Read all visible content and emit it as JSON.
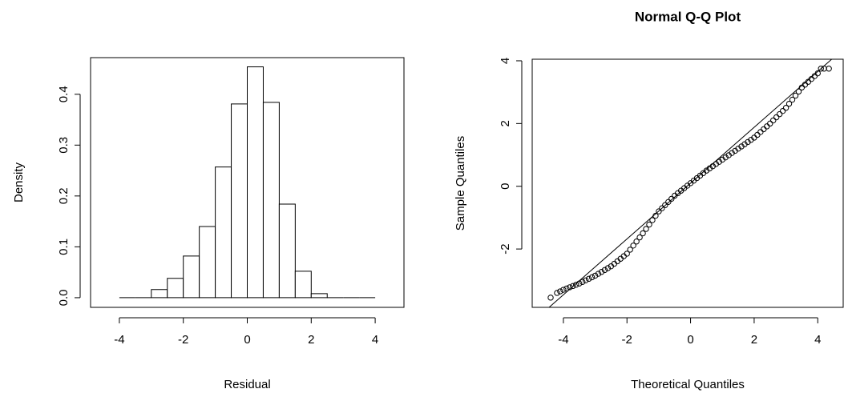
{
  "chart_data": [
    {
      "type": "histogram",
      "xlabel": "Residual",
      "ylabel": "Density",
      "bins": [
        -4,
        -3.5,
        -3,
        -2.5,
        -2,
        -1.5,
        -1,
        -0.5,
        0,
        0.5,
        1,
        1.5,
        2,
        2.5,
        3,
        3.5,
        4
      ],
      "values": [
        0,
        0,
        0.016,
        0.038,
        0.082,
        0.14,
        0.257,
        0.381,
        0.454,
        0.384,
        0.184,
        0.052,
        0.008,
        0,
        0,
        0
      ],
      "color": "#ffffff",
      "xlim": [
        -4.9,
        4.9
      ],
      "xticks": [
        -4,
        -2,
        0,
        2,
        4
      ],
      "ylim": [
        -0.019,
        0.472
      ],
      "yticks": [
        {
          "value": 0,
          "label": "0.0"
        },
        0.1,
        0.2,
        0.3,
        0.4
      ],
      "grid": false
    },
    {
      "type": "scatter",
      "title": "Normal Q-Q Plot",
      "xlabel": "Theoretical Quantiles",
      "ylabel": "Sample Quantiles",
      "x": [
        -4.4,
        -4.2,
        -4.1,
        -4.0,
        -3.9,
        -3.8,
        -3.7,
        -3.6,
        -3.5,
        -3.4,
        -3.3,
        -3.2,
        -3.1,
        -3.0,
        -2.9,
        -2.8,
        -2.7,
        -2.6,
        -2.5,
        -2.4,
        -2.3,
        -2.2,
        -2.1,
        -2.0,
        -1.9,
        -1.8,
        -1.7,
        -1.6,
        -1.5,
        -1.4,
        -1.3,
        -1.2,
        -1.1,
        -1.0,
        -0.9,
        -0.8,
        -0.7,
        -0.6,
        -0.5,
        -0.4,
        -0.3,
        -0.2,
        -0.1,
        0,
        0.1,
        0.2,
        0.3,
        0.4,
        0.5,
        0.6,
        0.7,
        0.8,
        0.9,
        1.0,
        1.1,
        1.2,
        1.3,
        1.4,
        1.5,
        1.6,
        1.7,
        1.8,
        1.9,
        2.0,
        2.1,
        2.2,
        2.3,
        2.4,
        2.5,
        2.6,
        2.7,
        2.8,
        2.9,
        3.0,
        3.1,
        3.2,
        3.3,
        3.4,
        3.5,
        3.6,
        3.7,
        3.8,
        3.9,
        4.0,
        4.1,
        4.2,
        4.35
      ],
      "y": [
        -3.55,
        -3.4,
        -3.35,
        -3.3,
        -3.26,
        -3.22,
        -3.18,
        -3.14,
        -3.1,
        -3.05,
        -3.0,
        -2.95,
        -2.9,
        -2.85,
        -2.79,
        -2.73,
        -2.67,
        -2.61,
        -2.55,
        -2.47,
        -2.39,
        -2.31,
        -2.23,
        -2.15,
        -2.02,
        -1.89,
        -1.76,
        -1.63,
        -1.5,
        -1.36,
        -1.22,
        -1.08,
        -0.94,
        -0.8,
        -0.7,
        -0.6,
        -0.5,
        -0.4,
        -0.3,
        -0.22,
        -0.14,
        -0.06,
        0.02,
        0.1,
        0.18,
        0.26,
        0.34,
        0.42,
        0.5,
        0.57,
        0.64,
        0.71,
        0.78,
        0.85,
        0.92,
        0.99,
        1.06,
        1.13,
        1.2,
        1.27,
        1.34,
        1.41,
        1.48,
        1.55,
        1.64,
        1.73,
        1.82,
        1.91,
        2.0,
        2.1,
        2.2,
        2.3,
        2.4,
        2.5,
        2.63,
        2.76,
        2.89,
        3.02,
        3.15,
        3.24,
        3.33,
        3.42,
        3.51,
        3.6,
        3.75,
        3.75,
        3.75
      ],
      "reference_line": {
        "intercept": 0.1,
        "slope": 0.89
      },
      "color": "#000000",
      "xlim": [
        -4.98,
        4.8
      ],
      "xticks": [
        -4,
        -2,
        0,
        2,
        4
      ],
      "ylim": [
        -3.86,
        4.05
      ],
      "yticks": [
        -2,
        0,
        2,
        4
      ],
      "grid": false
    }
  ]
}
